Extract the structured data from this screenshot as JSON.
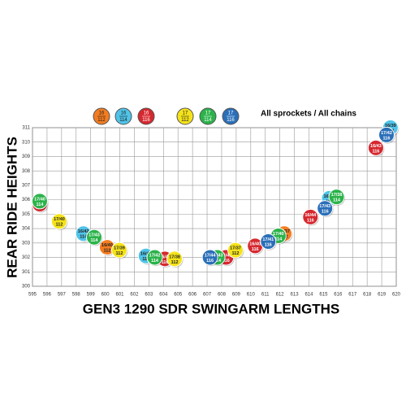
{
  "chart_data": {
    "type": "scatter",
    "xlabel": "GEN3 1290 SDR SWINGARM LENGTHS",
    "ylabel": "REAR RIDE HEIGHTS",
    "legend_note": "All sprockets / All chains",
    "xlim": [
      595,
      620
    ],
    "ylim": [
      300,
      311
    ],
    "xticks": [
      595,
      596,
      597,
      598,
      599,
      600,
      601,
      602,
      603,
      604,
      605,
      606,
      607,
      608,
      609,
      610,
      611,
      612,
      613,
      614,
      615,
      616,
      617,
      618,
      619,
      620
    ],
    "yticks": [
      300,
      301,
      302,
      303,
      304,
      305,
      306,
      307,
      308,
      309,
      310,
      311
    ],
    "grid": true,
    "series": [
      {
        "name": "16",
        "chain": "112",
        "color": "#f47c20",
        "x": [
          600.13,
          612.3
        ],
        "values": [
          302.7,
          303.65
        ],
        "point_labels": [
          "16/40",
          "16/37"
        ]
      },
      {
        "name": "16",
        "chain": "114",
        "color": "#4fc3e8",
        "x": [
          598.5,
          602.8,
          615.4,
          619.6
        ],
        "values": [
          303.65,
          302.1,
          306.1,
          311.0
        ],
        "point_labels": [
          "16/42",
          "16/40",
          "16/38",
          "16/39"
        ]
      },
      {
        "name": "16",
        "chain": "116",
        "color": "#d6282f",
        "x": [
          595.5,
          604.1,
          608.3,
          610.3,
          614.1,
          618.6
        ],
        "values": [
          305.7,
          301.9,
          302.0,
          302.8,
          304.8,
          309.6
        ],
        "point_labels": [
          "16/44",
          "16/42",
          "16/41",
          "16/40",
          "16/44",
          "16/43"
        ]
      },
      {
        "name": "17",
        "chain": "112",
        "color": "#f5e31a",
        "x": [
          596.84,
          600.97,
          604.77,
          608.95
        ],
        "values": [
          304.5,
          302.5,
          301.9,
          302.5
        ],
        "point_labels": [
          "17/40",
          "17/39",
          "17/38",
          "17/37"
        ]
      },
      {
        "name": "17",
        "chain": "114",
        "color": "#2bb34a",
        "x": [
          595.5,
          599.24,
          603.4,
          607.7,
          611.9,
          615.9
        ],
        "values": [
          305.9,
          303.4,
          302.0,
          302.0,
          303.5,
          306.2
        ],
        "point_labels": [
          "17/40",
          "17/43",
          "17/42",
          "17/43",
          "17/40",
          "17/38"
        ]
      },
      {
        "name": "17",
        "chain": "116",
        "color": "#2a6fb8",
        "x": [
          607.2,
          611.2,
          615.1,
          619.33
        ],
        "values": [
          302.0,
          303.1,
          305.4,
          310.5
        ],
        "point_labels": [
          "17/44",
          "17/41",
          "17/43",
          "17/42"
        ]
      }
    ]
  }
}
